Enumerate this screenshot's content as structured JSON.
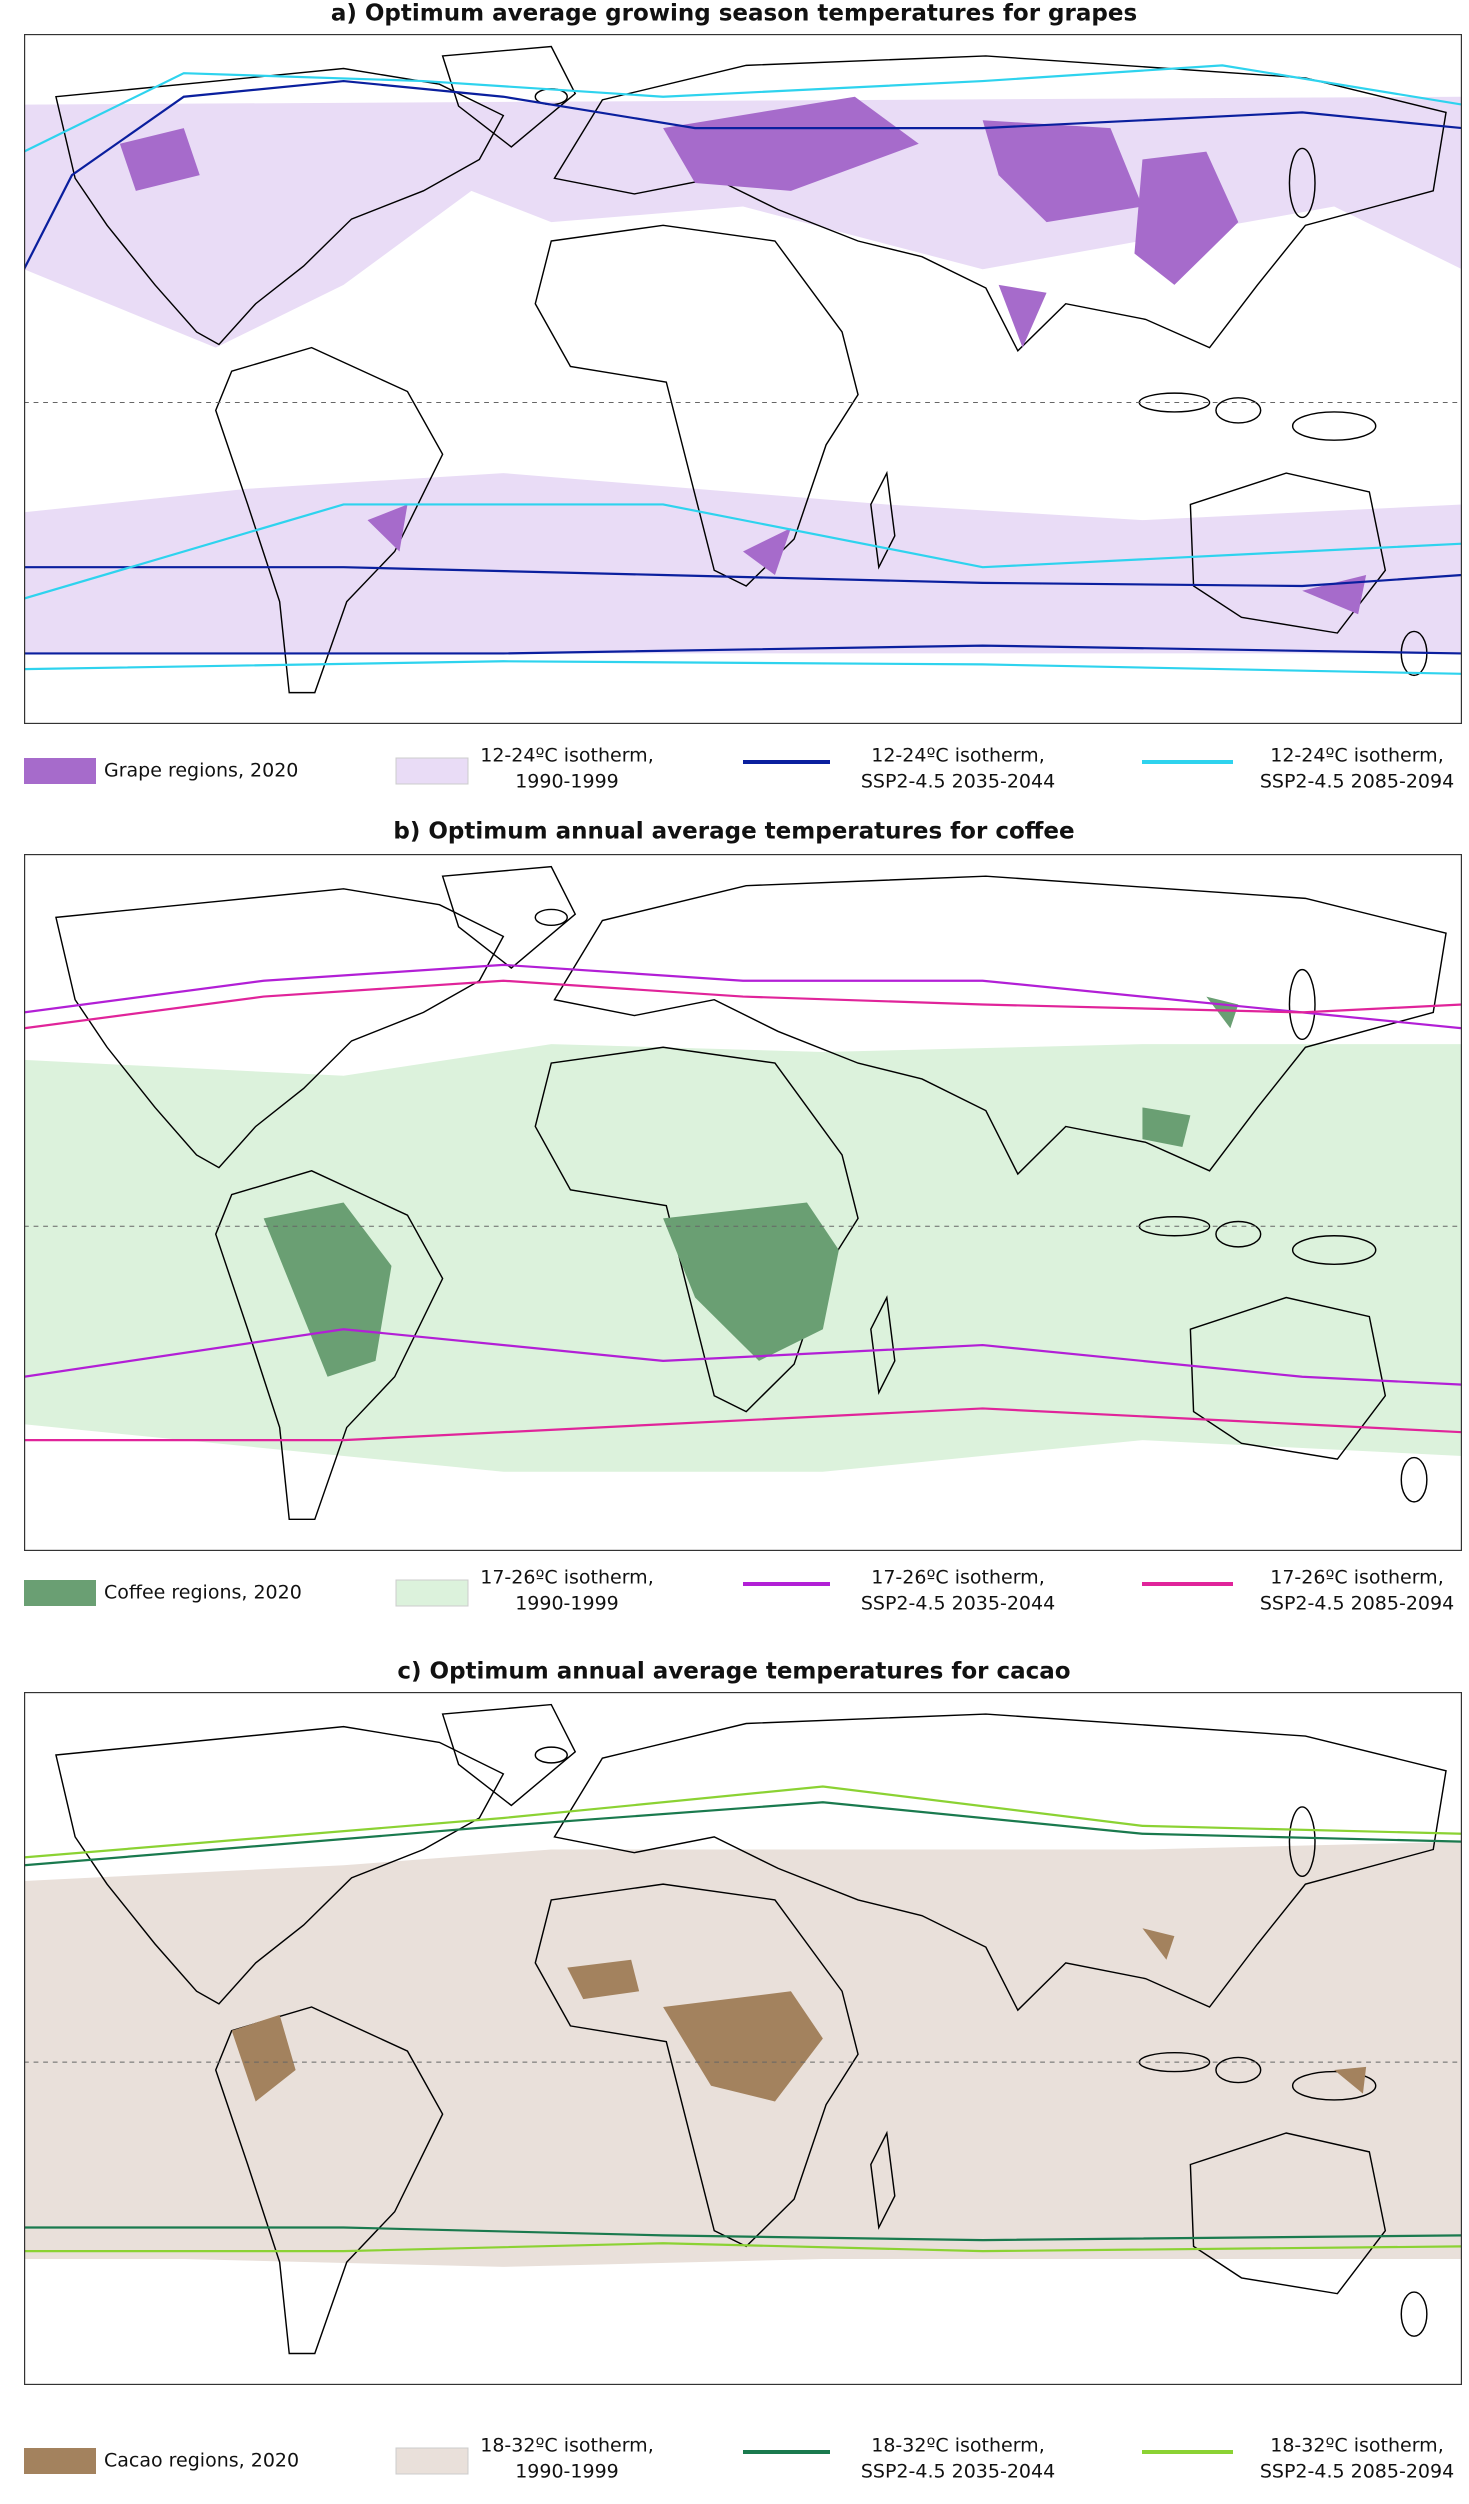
{
  "panels": [
    {
      "title": "a) Optimum average growing season temperatures for grapes",
      "legend": [
        {
          "label": "Grape regions, 2020"
        },
        {
          "label": [
            "12-24ºC isotherm,",
            "1990-1999"
          ]
        },
        {
          "label": [
            "12-24ºC isotherm,",
            "SSP2-4.5 2035-2044"
          ]
        },
        {
          "label": [
            "12-24ºC isotherm,",
            "SSP2-4.5 2085-2094"
          ]
        }
      ]
    },
    {
      "title": "b) Optimum annual average temperatures for coffee",
      "legend": [
        {
          "label": "Coffee regions, 2020"
        },
        {
          "label": [
            "17-26ºC isotherm,",
            "1990-1999"
          ]
        },
        {
          "label": [
            "17-26ºC isotherm,",
            "SSP2-4.5 2035-2044"
          ]
        },
        {
          "label": [
            "17-26ºC isotherm,",
            "SSP2-4.5 2085-2094"
          ]
        }
      ]
    },
    {
      "title": "c) Optimum annual average temperatures for cacao",
      "legend": [
        {
          "label": "Cacao regions, 2020"
        },
        {
          "label": [
            "18-32ºC isotherm,",
            "1990-1999"
          ]
        },
        {
          "label": [
            "18-32ºC isotherm,",
            "SSP2-4.5 2035-2044"
          ]
        },
        {
          "label": [
            "18-32ºC isotherm,",
            "SSP2-4.5 2085-2094"
          ]
        }
      ]
    }
  ]
}
